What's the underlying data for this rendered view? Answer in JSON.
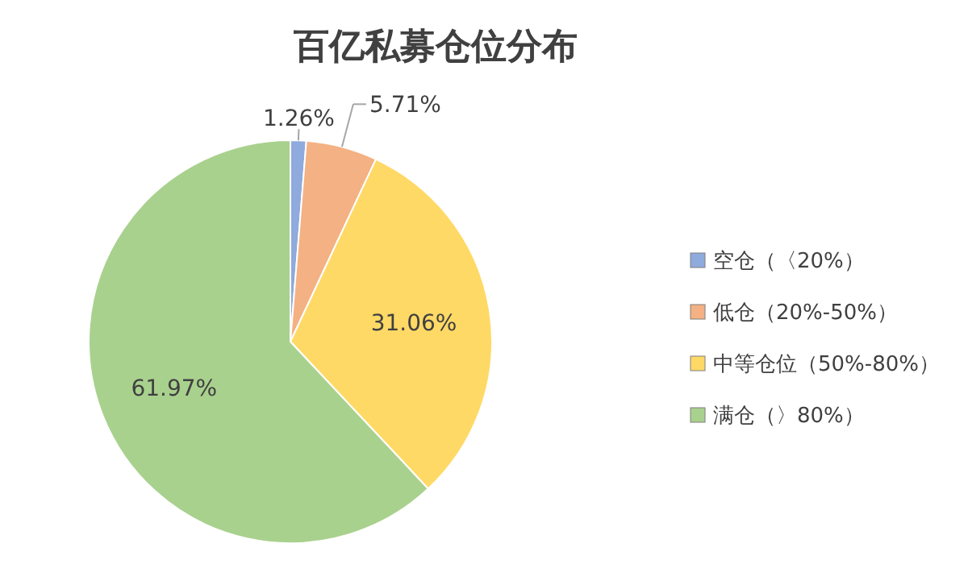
{
  "chart_data": {
    "type": "pie",
    "title": "百亿私募仓位分布",
    "categories": [
      "空仓（〈20%）",
      "低仓（20%-50%）",
      "中等仓位（50%-80%）",
      "满仓（〉80%）"
    ],
    "values": [
      1.26,
      5.71,
      31.06,
      61.97
    ],
    "colors": [
      "#8faadc",
      "#f4b183",
      "#ffd966",
      "#a9d18e"
    ],
    "value_labels": [
      "1.26%",
      "5.71%",
      "31.06%",
      "61.97%"
    ],
    "legend": "right"
  }
}
